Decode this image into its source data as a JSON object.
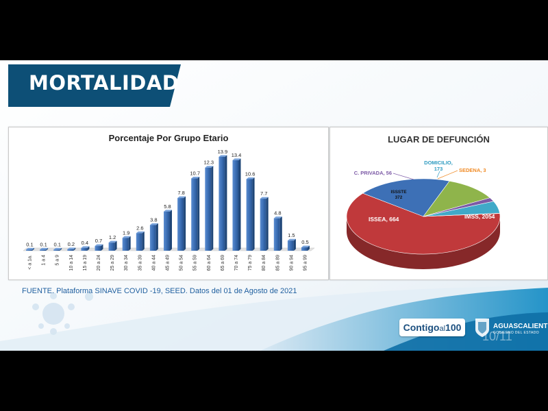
{
  "header": {
    "title": "MORTALIDAD"
  },
  "source_note": "FUENTE. Plataforma SINAVE COVID -19, SEED. Datos del 01 de Agosto de 2021",
  "brand": {
    "prefix": "Contigo",
    "middle": "al",
    "suffix": "100"
  },
  "state": {
    "name": "AGUASCALIENTES",
    "subtitle": "GOBIERNO DEL ESTADO"
  },
  "slide_number": "10/11",
  "colors": {
    "header_blue": "#0d4f76",
    "bar": "#3c6fb5",
    "pie_imss": "#c0393b",
    "pie_issea": "#3d70b6",
    "pie_issste": "#8fb44b",
    "pie_cprivada": "#7c5aa6",
    "pie_domicilio": "#40a9c8",
    "pie_sedena": "#f08a24"
  },
  "chart_data": [
    {
      "type": "bar",
      "title": "Porcentaje Por Grupo Etario",
      "categories": [
        "< a 1a.",
        "1 a 4",
        "5 a 9",
        "10 a 14",
        "15 a 19",
        "20 a 24",
        "25 a 29",
        "30 a 34",
        "35 a 39",
        "40 a 44",
        "45 a 49",
        "50 a 54",
        "55 a 59",
        "60 a 64",
        "65 a 69",
        "70 a 74",
        "75 a 79",
        "80 a 84",
        "85 a 89",
        "90 a 94",
        "95 a 99"
      ],
      "values": [
        0.1,
        0.1,
        0.1,
        0.2,
        0.4,
        0.7,
        1.2,
        1.9,
        2.6,
        3.8,
        5.8,
        7.8,
        10.7,
        12.3,
        13.9,
        13.4,
        10.6,
        7.7,
        4.8,
        1.5,
        0.5
      ],
      "value_labels": [
        "0.1",
        "0.1",
        "0.1",
        "0.2",
        "0.4",
        "0.7",
        "1.2",
        "1.9",
        "2.6",
        "3.8",
        "5.8",
        "7.8",
        "10.7",
        "12.3",
        "13.9",
        "13.4",
        "10.6",
        "7.7",
        "4.8",
        "1.5",
        "0.5"
      ],
      "xlabel": "",
      "ylabel": "",
      "ylim": [
        0,
        14.2
      ],
      "grid": false,
      "legend": "none"
    },
    {
      "type": "pie",
      "title": "LUGAR DE DEFUNCIÓN",
      "slices": [
        {
          "label": "IMSS",
          "value": 2054,
          "text": "IMSS, 2054",
          "color": "#c0393b"
        },
        {
          "label": "ISSEA",
          "value": 664,
          "text": "ISSEA, 664",
          "color": "#3d70b6"
        },
        {
          "label": "ISSSTE",
          "value": 372,
          "text": "ISSSTE 372",
          "color": "#8fb44b"
        },
        {
          "label": "C. PRIVADA",
          "value": 56,
          "text": "C. PRIVADA, 56",
          "color": "#7c5aa6"
        },
        {
          "label": "DOMICILIO",
          "value": 173,
          "text": "DOMICILIO, 173",
          "color": "#40a9c8"
        },
        {
          "label": "SEDENA",
          "value": 3,
          "text": "SEDENA, 3",
          "color": "#f08a24"
        }
      ],
      "style": "3d",
      "legend": "data-labels"
    }
  ]
}
